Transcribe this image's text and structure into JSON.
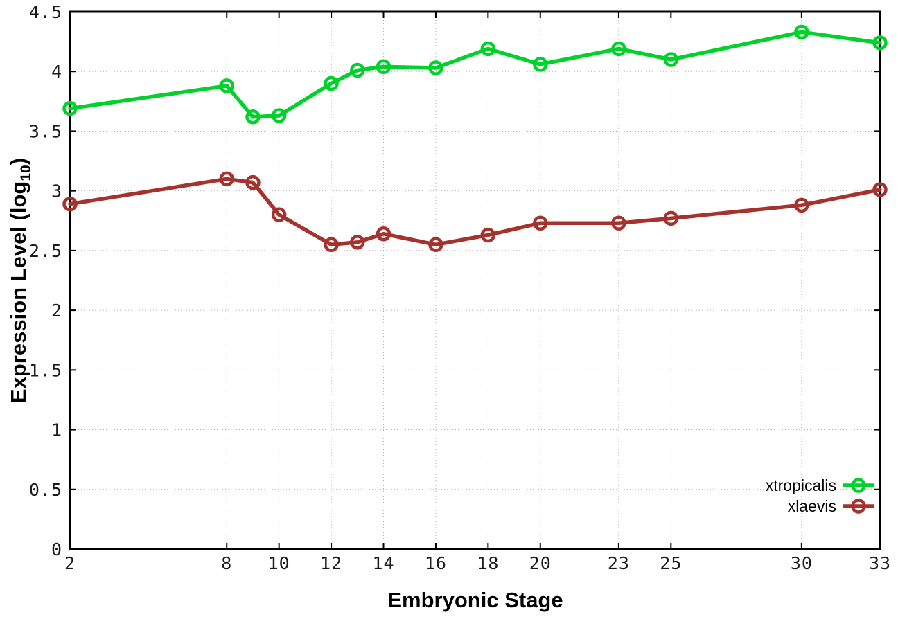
{
  "chart_data": {
    "type": "line",
    "title": "",
    "xlabel": "Embryonic Stage",
    "ylabel": "Expression Level (log10)",
    "ylabel_parts": {
      "main": "Expression Level (log",
      "sub": "10",
      "close": ")"
    },
    "xlim": [
      2,
      33
    ],
    "ylim": [
      0,
      4.5
    ],
    "x": [
      2,
      8,
      9,
      10,
      12,
      13,
      14,
      16,
      18,
      20,
      23,
      25,
      30,
      33
    ],
    "xticks": [
      2,
      8,
      10,
      12,
      14,
      16,
      18,
      20,
      23,
      25,
      30,
      33
    ],
    "yticks": [
      "0",
      "0.5",
      "1",
      "1.5",
      "2",
      "2.5",
      "3",
      "3.5",
      "4",
      "4.5"
    ],
    "grid": true,
    "legend_position": "bottom-right",
    "axis_color": "#000000",
    "grid_color": "#aab0bc",
    "series": [
      {
        "name": "xtropicalis",
        "color": "#00d22b",
        "marker": "open-circle",
        "values": [
          3.69,
          3.88,
          3.62,
          3.63,
          3.9,
          4.01,
          4.04,
          4.03,
          4.19,
          4.06,
          4.19,
          4.1,
          4.33,
          4.24
        ]
      },
      {
        "name": "xlaevis",
        "color": "#a5322c",
        "marker": "open-circle",
        "values": [
          2.89,
          3.1,
          3.07,
          2.8,
          2.55,
          2.57,
          2.64,
          2.55,
          2.63,
          2.73,
          2.73,
          2.77,
          2.88,
          3.01
        ]
      }
    ]
  }
}
